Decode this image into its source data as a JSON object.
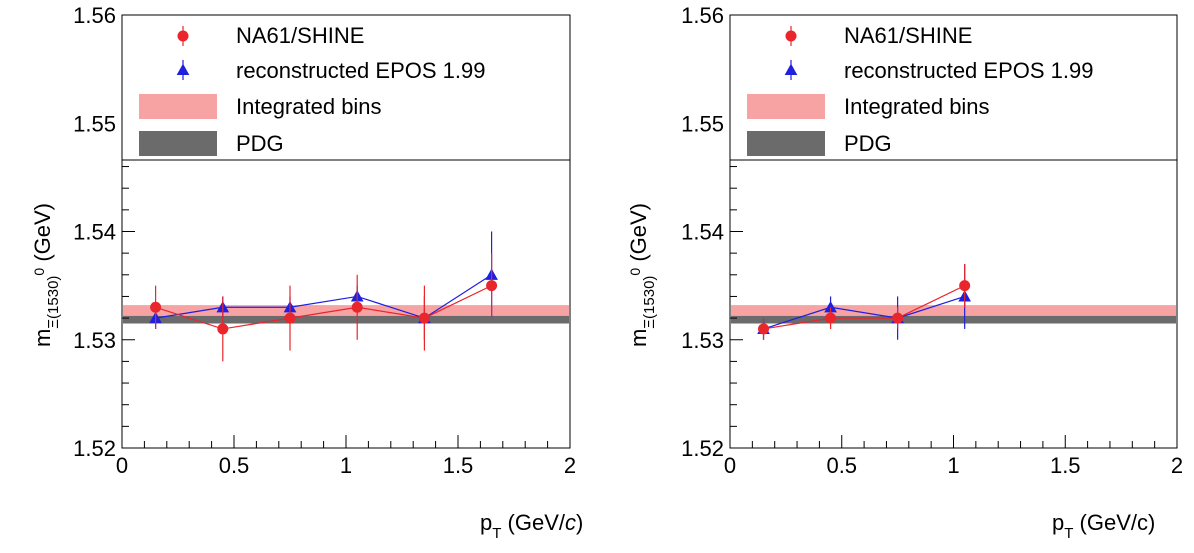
{
  "colors": {
    "data": "#e8262b",
    "epos": "#1f1fe0",
    "integrated": "#f7a3a3",
    "pdg": "#6b6b6b"
  },
  "chart_data": [
    {
      "type": "scatter",
      "ylabel": "m_Ξ(1530)⁰ (GeV)",
      "ylabel_main": "m",
      "ylabel_sub": "Ξ(1530)",
      "ylabel_sup": "0",
      "ylabel_unit": " (GeV)",
      "xlabel_main": "p",
      "xlabel_sub": "T",
      "xlabel_unit": " (GeV/",
      "xlabel_c": "c",
      "xlabel_close": ")",
      "xlim": [
        0,
        2
      ],
      "ylim": [
        1.52,
        1.56
      ],
      "x_ticks": [
        "0",
        "0.5",
        "1",
        "1.5",
        "2"
      ],
      "y_ticks": [
        "1.52",
        "1.53",
        "1.54",
        "1.55",
        "1.56"
      ],
      "legend": {
        "data": "NA61/SHINE",
        "epos": "reconstructed EPOS 1.99",
        "integrated": "Integrated bins",
        "pdg": "PDG"
      },
      "integrated_band": [
        1.5319,
        1.5332
      ],
      "pdg_band": [
        1.5315,
        1.5322
      ],
      "series": [
        {
          "name": "NA61/SHINE",
          "x": [
            0.15,
            0.45,
            0.75,
            1.05,
            1.35,
            1.65
          ],
          "y": [
            1.533,
            1.531,
            1.532,
            1.533,
            1.532,
            1.535
          ],
          "yerr": [
            0.002,
            0.003,
            0.003,
            0.003,
            0.003,
            0.003
          ]
        },
        {
          "name": "reconstructed EPOS 1.99",
          "x": [
            0.15,
            0.45,
            0.75,
            1.05,
            1.35,
            1.65
          ],
          "y": [
            1.532,
            1.533,
            1.533,
            1.534,
            1.532,
            1.536
          ],
          "yerr": [
            0.001,
            0.001,
            0.001,
            0.001,
            0.002,
            0.004
          ]
        }
      ]
    },
    {
      "type": "scatter",
      "ylabel": "m_Ξ(1530)⁰ (GeV)",
      "ylabel_main": "m",
      "ylabel_sub": "Ξ(1530)",
      "ylabel_sup": "0",
      "ylabel_unit": " (GeV)",
      "xlabel_main": "p",
      "xlabel_sub": "T",
      "xlabel_unit": " (GeV/c)",
      "xlabel_c": "",
      "xlabel_close": "",
      "xlim": [
        0,
        2
      ],
      "ylim": [
        1.52,
        1.56
      ],
      "x_ticks": [
        "0",
        "0.5",
        "1",
        "1.5",
        "2"
      ],
      "y_ticks": [
        "1.52",
        "1.53",
        "1.54",
        "1.55",
        "1.56"
      ],
      "legend": {
        "data": "NA61/SHINE",
        "epos": "reconstructed EPOS 1.99",
        "integrated": "Integrated bins",
        "pdg": "PDG"
      },
      "integrated_band": [
        1.5319,
        1.5332
      ],
      "pdg_band": [
        1.5315,
        1.5322
      ],
      "series": [
        {
          "name": "NA61/SHINE",
          "x": [
            0.15,
            0.45,
            0.75,
            1.05
          ],
          "y": [
            1.531,
            1.532,
            1.532,
            1.535
          ],
          "yerr": [
            0.001,
            0.001,
            0.001,
            0.002
          ]
        },
        {
          "name": "reconstructed EPOS 1.99",
          "x": [
            0.15,
            0.45,
            0.75,
            1.05
          ],
          "y": [
            1.531,
            1.533,
            1.532,
            1.534
          ],
          "yerr": [
            0.001,
            0.001,
            0.002,
            0.003
          ]
        }
      ]
    }
  ]
}
